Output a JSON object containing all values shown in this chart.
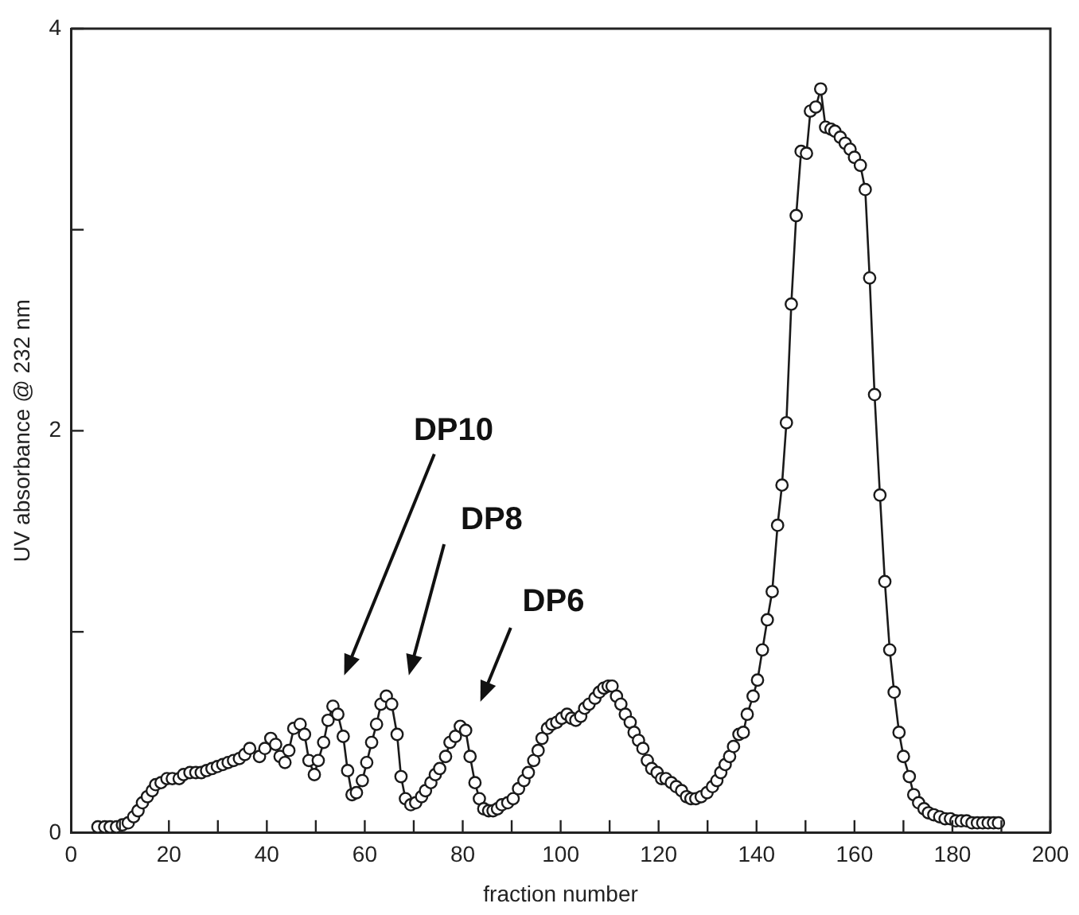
{
  "chart_data": {
    "type": "line",
    "xlabel": "fraction number",
    "ylabel": "UV absorbance @ 232 nm",
    "xlim": [
      0,
      200
    ],
    "ylim": [
      0,
      4
    ],
    "xticks": [
      0,
      {
        "value": 10,
        "label": null
      },
      20,
      {
        "value": 30,
        "label": null
      },
      40,
      {
        "value": 50,
        "label": null
      },
      60,
      {
        "value": 70,
        "label": null
      },
      80,
      {
        "value": 90,
        "label": null
      },
      100,
      {
        "value": 110,
        "label": null
      },
      120,
      {
        "value": 130,
        "label": null
      },
      140,
      {
        "value": 150,
        "label": null
      },
      160,
      {
        "value": 170,
        "label": null
      },
      180,
      {
        "value": 190,
        "label": null
      },
      200
    ],
    "yticks": [
      0,
      {
        "value": 1,
        "label": null
      },
      2,
      {
        "value": 3,
        "label": null
      },
      4
    ],
    "grid": false,
    "legend": false,
    "marker": "circle",
    "line_style": "solid",
    "annotations": [
      "DP10",
      "DP8",
      "DP6"
    ],
    "series": [
      {
        "color": "#1a1a1a",
        "x": [
          5.5,
          6.9,
          8,
          9.3,
          10.5,
          11.7,
          12.8,
          13.7,
          14.6,
          15.6,
          16.6,
          17.3,
          18.4,
          19.6,
          20.7,
          22.1,
          23,
          24.3,
          25.5,
          26.6,
          27.7,
          28.8,
          29.9,
          31,
          32.1,
          33.2,
          34.4,
          35.5,
          36.5,
          38.5,
          39.6,
          40.8,
          41.8,
          42.7,
          43.7,
          44.5,
          45.5,
          46.8,
          47.7,
          48.6,
          49.7,
          50.5,
          51.6,
          52.5,
          53.5,
          54.5,
          55.6,
          56.5,
          57.4,
          58.3,
          59.5,
          60.4,
          61.4,
          62.4,
          63.3,
          64.4,
          65.5,
          66.6,
          67.4,
          68.3,
          69.4,
          70.4,
          71.6,
          72.4,
          73.5,
          74.4,
          75.3,
          76.5,
          77.4,
          78.5,
          79.5,
          80.6,
          81.5,
          82.5,
          83.4,
          84.3,
          85.3,
          86.2,
          87.1,
          88,
          89.2,
          90.3,
          91.4,
          92.5,
          93.4,
          94.5,
          95.4,
          96.2,
          97.3,
          98.2,
          99.2,
          100.2,
          101.3,
          102.2,
          103.1,
          104.1,
          104.9,
          105.8,
          107,
          107.9,
          108.8,
          109.7,
          110.5,
          111.4,
          112.3,
          113.2,
          114.2,
          115,
          115.9,
          116.8,
          117.7,
          118.6,
          119.7,
          120.6,
          121.5,
          122.6,
          123.6,
          124.7,
          125.7,
          126.6,
          127.6,
          128.7,
          129.9,
          131,
          131.9,
          132.7,
          133.6,
          134.5,
          135.3,
          136.4,
          137.3,
          138.1,
          139.3,
          140.2,
          141.2,
          142.2,
          143.2,
          144.3,
          145.2,
          146.1,
          147.1,
          148.1,
          149.1,
          150.2,
          151,
          152.1,
          153.1,
          154.1,
          155.2,
          156,
          157.1,
          158.1,
          159.1,
          160,
          161.2,
          162.2,
          163.1,
          164.1,
          165.2,
          166.2,
          167.2,
          168.1,
          169.1,
          170,
          171.2,
          172.1,
          173.1,
          174.2,
          175.1,
          176.2,
          177.4,
          178.5,
          179.6,
          180.7,
          181.8,
          182.9,
          184,
          185.1,
          186.2,
          187.3,
          188.4,
          189.4
        ],
        "values": [
          0.03,
          0.03,
          0.03,
          0.03,
          0.04,
          0.05,
          0.08,
          0.11,
          0.15,
          0.18,
          0.21,
          0.24,
          0.25,
          0.27,
          0.27,
          0.27,
          0.29,
          0.3,
          0.3,
          0.3,
          0.31,
          0.32,
          0.33,
          0.34,
          0.35,
          0.36,
          0.37,
          0.39,
          0.42,
          0.38,
          0.42,
          0.47,
          0.44,
          0.38,
          0.35,
          0.41,
          0.52,
          0.54,
          0.49,
          0.36,
          0.29,
          0.36,
          0.45,
          0.56,
          0.63,
          0.59,
          0.48,
          0.31,
          0.19,
          0.2,
          0.26,
          0.35,
          0.45,
          0.54,
          0.64,
          0.68,
          0.64,
          0.49,
          0.28,
          0.17,
          0.14,
          0.15,
          0.18,
          0.21,
          0.25,
          0.29,
          0.32,
          0.38,
          0.45,
          0.48,
          0.53,
          0.51,
          0.38,
          0.25,
          0.17,
          0.12,
          0.11,
          0.11,
          0.12,
          0.14,
          0.15,
          0.17,
          0.22,
          0.26,
          0.3,
          0.36,
          0.41,
          0.47,
          0.52,
          0.54,
          0.55,
          0.57,
          0.59,
          0.57,
          0.56,
          0.58,
          0.62,
          0.64,
          0.67,
          0.7,
          0.72,
          0.73,
          0.73,
          0.68,
          0.64,
          0.59,
          0.55,
          0.5,
          0.46,
          0.42,
          0.36,
          0.32,
          0.3,
          0.27,
          0.27,
          0.25,
          0.23,
          0.21,
          0.18,
          0.17,
          0.17,
          0.18,
          0.2,
          0.23,
          0.26,
          0.3,
          0.34,
          0.38,
          0.43,
          0.49,
          0.5,
          0.59,
          0.68,
          0.76,
          0.91,
          1.06,
          1.2,
          1.53,
          1.73,
          2.04,
          2.63,
          3.07,
          3.39,
          3.38,
          3.59,
          3.61,
          3.7,
          3.51,
          3.5,
          3.49,
          3.46,
          3.43,
          3.4,
          3.36,
          3.32,
          3.2,
          2.76,
          2.18,
          1.68,
          1.25,
          0.91,
          0.7,
          0.5,
          0.38,
          0.28,
          0.19,
          0.15,
          0.12,
          0.1,
          0.09,
          0.08,
          0.07,
          0.07,
          0.06,
          0.06,
          0.06,
          0.05,
          0.05,
          0.05,
          0.05,
          0.05,
          0.05
        ]
      }
    ]
  }
}
